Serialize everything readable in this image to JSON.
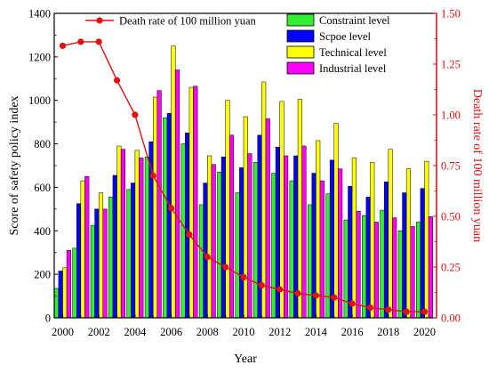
{
  "chart_data": {
    "type": "bar",
    "title": "",
    "xlabel": "Year",
    "ylabel_left": "Score of safety policy index",
    "ylabel_right": "Death rate of 100 million yuan",
    "years": [
      2000,
      2001,
      2002,
      2003,
      2004,
      2005,
      2006,
      2007,
      2008,
      2009,
      2010,
      2011,
      2012,
      2013,
      2014,
      2015,
      2016,
      2017,
      2018,
      2019,
      2020
    ],
    "x_tick_labels": [
      "2000",
      "2002",
      "2004",
      "2006",
      "2008",
      "2010",
      "2012",
      "2014",
      "2016",
      "2018",
      "2020"
    ],
    "ylim_left": [
      0,
      1400
    ],
    "yticks_left": [
      "0",
      "200",
      "400",
      "600",
      "800",
      "1000",
      "1200",
      "1400"
    ],
    "ylim_right": [
      0,
      1.5
    ],
    "yticks_right": [
      "0.00",
      "0.25",
      "0.50",
      "0.75",
      "1.00",
      "1.25",
      "1.50"
    ],
    "legend_position": "top-right",
    "series": [
      {
        "name": "Constraint level",
        "color": "#33ee33",
        "values": [
          135,
          320,
          425,
          555,
          590,
          740,
          920,
          800,
          520,
          670,
          575,
          715,
          665,
          630,
          520,
          570,
          450,
          470,
          495,
          400,
          440
        ]
      },
      {
        "name": "Scpoe level",
        "color": "#0000ff",
        "values": [
          215,
          525,
          500,
          655,
          620,
          810,
          940,
          850,
          620,
          740,
          690,
          840,
          785,
          745,
          665,
          725,
          605,
          555,
          625,
          575,
          595
        ]
      },
      {
        "name": "Technical level",
        "color": "#ffff00",
        "values": [
          230,
          630,
          575,
          790,
          770,
          1015,
          1250,
          1060,
          745,
          1000,
          925,
          1085,
          995,
          1005,
          815,
          895,
          735,
          715,
          775,
          685,
          720
        ]
      },
      {
        "name": "Industrial level",
        "color": "#ff00ff",
        "values": [
          310,
          650,
          500,
          775,
          735,
          1045,
          1140,
          1065,
          705,
          840,
          755,
          915,
          745,
          790,
          630,
          685,
          490,
          440,
          460,
          420,
          465
        ]
      }
    ],
    "line_series": {
      "name": "Death rate of 100 million yuan",
      "color": "#e01010",
      "axis": "right",
      "values": [
        1.34,
        1.36,
        1.36,
        1.17,
        1.0,
        0.7,
        0.54,
        0.41,
        0.3,
        0.25,
        0.2,
        0.16,
        0.14,
        0.12,
        0.11,
        0.1,
        0.07,
        0.05,
        0.04,
        0.03,
        0.03
      ]
    }
  }
}
